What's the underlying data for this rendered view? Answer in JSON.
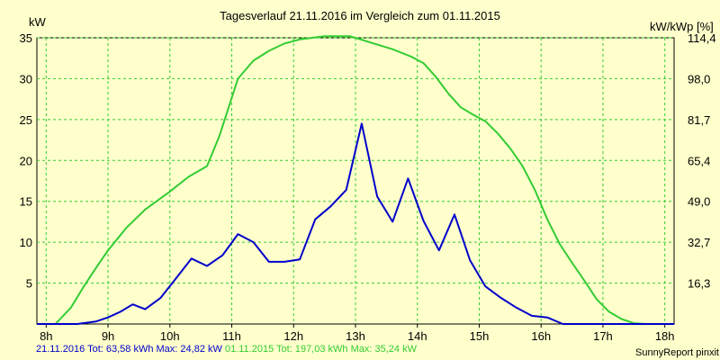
{
  "chart_data": {
    "type": "line",
    "title": "Tagesverlauf 21.11.2016 im Vergleich zum 01.11.2015",
    "ylabel": "kW",
    "ylabel_right": "kW/kWp [%]",
    "x_ticks": [
      "8h",
      "9h",
      "10h",
      "11h",
      "12h",
      "13h",
      "14h",
      "15h",
      "16h",
      "17h",
      "18h"
    ],
    "xlim": [
      7.85,
      18.15
    ],
    "ylim": [
      0,
      35
    ],
    "y_ticks": [
      "5",
      "10",
      "15",
      "20",
      "25",
      "30",
      "35"
    ],
    "y_right_ticks": [
      "16,3",
      "32,7",
      "49,0",
      "65,4",
      "81,7",
      "98,0",
      "114,4"
    ],
    "grid": true,
    "series": [
      {
        "name": "21.11.2016",
        "color": "#0000cc",
        "x": [
          7.85,
          8.5,
          8.8,
          9.0,
          9.2,
          9.4,
          9.6,
          9.85,
          10.1,
          10.35,
          10.6,
          10.85,
          11.1,
          11.35,
          11.6,
          11.85,
          12.1,
          12.35,
          12.6,
          12.85,
          13.1,
          13.35,
          13.6,
          13.85,
          14.1,
          14.35,
          14.6,
          14.85,
          15.1,
          15.35,
          15.6,
          15.85,
          16.1,
          16.35,
          16.6,
          17.0,
          17.5,
          18.0,
          18.15
        ],
        "y": [
          0,
          0,
          0.3,
          0.8,
          1.5,
          2.4,
          1.8,
          3.2,
          5.6,
          8.0,
          7.1,
          8.4,
          11.0,
          10.0,
          7.6,
          7.6,
          7.9,
          12.8,
          14.4,
          16.4,
          24.5,
          15.6,
          12.5,
          17.8,
          12.6,
          9.0,
          13.4,
          7.8,
          4.6,
          3.2,
          2.0,
          1.0,
          0.8,
          0,
          0,
          0,
          0,
          0,
          0
        ]
      },
      {
        "name": "01.11.2015",
        "color": "#33cc33",
        "x": [
          7.85,
          8.15,
          8.4,
          8.6,
          8.8,
          9.0,
          9.3,
          9.6,
          10.0,
          10.3,
          10.6,
          10.8,
          10.95,
          11.1,
          11.35,
          11.6,
          11.85,
          12.1,
          12.5,
          12.9,
          13.0,
          13.3,
          13.6,
          13.9,
          14.1,
          14.3,
          14.5,
          14.7,
          14.9,
          15.1,
          15.3,
          15.5,
          15.7,
          15.9,
          16.1,
          16.3,
          16.5,
          16.7,
          16.9,
          17.1,
          17.3,
          17.5,
          17.7,
          18.15
        ],
        "y": [
          0,
          0,
          2.0,
          4.5,
          6.8,
          9.0,
          11.8,
          14.0,
          16.2,
          18.0,
          19.3,
          23.0,
          26.5,
          30.0,
          32.2,
          33.4,
          34.3,
          34.8,
          35.2,
          35.2,
          35.0,
          34.3,
          33.6,
          32.7,
          31.9,
          30.2,
          28.2,
          26.5,
          25.6,
          24.8,
          23.3,
          21.5,
          19.3,
          16.4,
          12.8,
          9.8,
          7.5,
          5.3,
          3.0,
          1.5,
          0.6,
          0.1,
          0,
          0
        ]
      }
    ]
  },
  "legend": {
    "entry1": "21.11.2016 Tot: 63,58 kWh Max: 24,82 kW",
    "entry2": "01.11.2015 Tot: 197,03 kWh Max: 35,24 kW"
  },
  "credit": "SunnyReport pinxit"
}
